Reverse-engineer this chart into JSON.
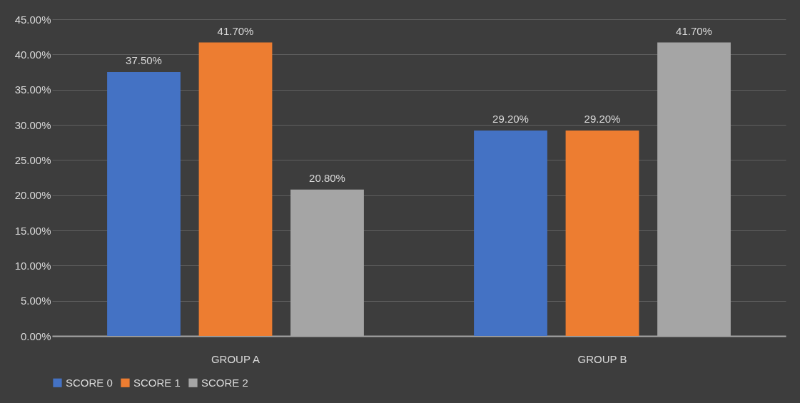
{
  "chart_data": {
    "type": "bar",
    "categories": [
      "GROUP A",
      "GROUP B"
    ],
    "series": [
      {
        "name": "SCORE 0",
        "color": "#4472c4",
        "values": [
          37.5,
          29.2
        ],
        "value_labels": [
          "37.50%",
          "29.20%"
        ]
      },
      {
        "name": "SCORE 1",
        "color": "#ed7d31",
        "values": [
          41.7,
          29.2
        ],
        "value_labels": [
          "41.70%",
          "29.20%"
        ]
      },
      {
        "name": "SCORE 2",
        "color": "#a5a5a5",
        "values": [
          20.8,
          41.7
        ],
        "value_labels": [
          "20.80%",
          "41.70%"
        ]
      }
    ],
    "ylim": [
      0,
      45
    ],
    "yticks": [
      {
        "value": 0,
        "label": "0.00%"
      },
      {
        "value": 5,
        "label": "5.00%"
      },
      {
        "value": 10,
        "label": "10.00%"
      },
      {
        "value": 15,
        "label": "15.00%"
      },
      {
        "value": 20,
        "label": "20.00%"
      },
      {
        "value": 25,
        "label": "25.00%"
      },
      {
        "value": 30,
        "label": "30.00%"
      },
      {
        "value": 35,
        "label": "35.00%"
      },
      {
        "value": 40,
        "label": "40.00%"
      },
      {
        "value": 45,
        "label": "45.00%"
      }
    ],
    "grid": "y",
    "legend": "bottom"
  }
}
